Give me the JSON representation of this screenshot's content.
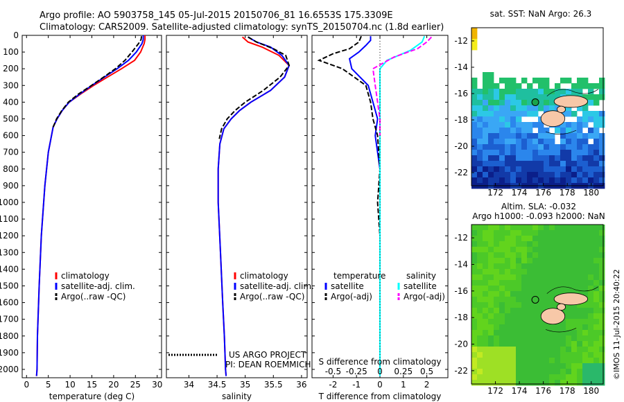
{
  "header": {
    "line1": "Argo profile: AO 5903758_145 05-Jul-2015 20150706_81 16.6553S 175.3309E",
    "line2": "Climatology: CARS2009. Satellite-adjusted climatology: synTS_20150704.nc (1.8d earlier)"
  },
  "colors": {
    "climatology": "#ff0000",
    "satellite": "#0000ff",
    "argo": "#000000",
    "salinity_satellite": "#00ffff",
    "salinity_argo": "#ff00ff"
  },
  "credits": {
    "project": "US ARGO PROJECT",
    "pi": "PI: DEAN ROEMMICH"
  },
  "watermark": "©IMOS 11-Jul-2015 20:40:22",
  "chart_data": [
    {
      "id": "temperature",
      "type": "line",
      "xlabel": "temperature (deg C)",
      "ylabel": "",
      "xlim": [
        -1,
        31
      ],
      "ylim": [
        2050,
        0
      ],
      "xticks": [
        0,
        5,
        10,
        15,
        20,
        25,
        30
      ],
      "yticks": [
        0,
        100,
        200,
        300,
        400,
        500,
        600,
        700,
        800,
        900,
        1000,
        1100,
        1200,
        1300,
        1400,
        1500,
        1600,
        1700,
        1800,
        1900,
        2000
      ],
      "legend": {
        "position": "lower-center",
        "entries": [
          "climatology",
          "satellite-adj. clim.",
          "Argo(..raw -QC)"
        ]
      },
      "series": [
        {
          "name": "climatology",
          "color": "#ff0000",
          "style": "solid",
          "x": [
            27.2,
            27.2,
            27.0,
            26.2,
            24.8,
            21.8,
            18.6,
            15.4,
            12.5,
            9.8,
            8.2,
            7.0,
            6.1,
            5.0,
            4.2,
            3.4,
            2.9,
            2.5,
            2.4,
            2.3
          ],
          "y": [
            0,
            25,
            50,
            100,
            150,
            200,
            250,
            300,
            350,
            400,
            450,
            500,
            550,
            700,
            900,
            1200,
            1500,
            1800,
            2000,
            2040
          ]
        },
        {
          "name": "satellite-adj. clim.",
          "color": "#0000ff",
          "style": "solid",
          "x": [
            26.8,
            26.8,
            26.5,
            25.2,
            23.4,
            20.8,
            17.9,
            15.0,
            12.3,
            9.8,
            8.2,
            7.0,
            6.1,
            5.0,
            4.2,
            3.4,
            2.9,
            2.5,
            2.4,
            2.3
          ],
          "y": [
            0,
            25,
            50,
            100,
            150,
            200,
            250,
            300,
            350,
            400,
            450,
            500,
            550,
            700,
            900,
            1200,
            1500,
            1800,
            2000,
            2040
          ]
        },
        {
          "name": "Argo(..raw -QC)",
          "color": "#000000",
          "style": "dashed",
          "x": [
            26.4,
            26.3,
            25.7,
            24.2,
            22.6,
            20.4,
            17.7,
            14.9,
            12.0,
            9.6,
            8.1,
            6.9,
            6.1
          ],
          "y": [
            5,
            25,
            50,
            100,
            150,
            200,
            250,
            300,
            350,
            400,
            450,
            500,
            550
          ]
        }
      ]
    },
    {
      "id": "salinity",
      "type": "line",
      "xlabel": "salinity",
      "ylabel": "",
      "xlim": [
        33.6,
        36.1
      ],
      "ylim": [
        2050,
        0
      ],
      "xticks": [
        34,
        34.5,
        35,
        35.5,
        36
      ],
      "legend": {
        "position": "lower-center",
        "entries": [
          "climatology",
          "satellite-adj. clim.",
          "Argo(..raw -QC)"
        ]
      },
      "series": [
        {
          "name": "climatology",
          "color": "#ff0000",
          "style": "solid",
          "x": [
            34.95,
            35.05,
            35.3,
            35.6,
            35.78,
            35.7,
            35.45,
            35.1,
            34.9,
            34.75,
            34.62,
            34.55,
            34.52,
            34.52,
            34.56,
            34.6,
            34.63,
            34.65,
            34.66
          ],
          "y": [
            10,
            40,
            70,
            120,
            180,
            250,
            330,
            400,
            450,
            500,
            560,
            650,
            800,
            1000,
            1300,
            1600,
            1800,
            2000,
            2040
          ]
        },
        {
          "name": "satellite-adj. clim.",
          "color": "#0000ff",
          "style": "solid",
          "x": [
            35.05,
            35.2,
            35.45,
            35.65,
            35.78,
            35.7,
            35.45,
            35.1,
            34.9,
            34.75,
            34.62,
            34.55,
            34.52,
            34.52,
            34.56,
            34.6,
            34.63,
            34.65,
            34.66
          ],
          "y": [
            10,
            40,
            70,
            120,
            180,
            250,
            330,
            400,
            450,
            500,
            560,
            650,
            800,
            1000,
            1300,
            1600,
            1800,
            2000,
            2040
          ]
        },
        {
          "name": "Argo(..raw -QC)",
          "color": "#000000",
          "style": "dashed",
          "x": [
            35.05,
            35.2,
            35.5,
            35.72,
            35.78,
            35.62,
            35.32,
            35.0,
            34.82,
            34.68,
            34.58,
            34.54
          ],
          "y": [
            10,
            40,
            80,
            120,
            180,
            250,
            330,
            400,
            450,
            500,
            560,
            620
          ]
        }
      ],
      "annotations": [
        "US ARGO PROJECT",
        "PI: DEAN ROEMMICH"
      ]
    },
    {
      "id": "differences",
      "type": "line",
      "xlabel": "T difference from climatology",
      "x2label": "S difference from climatology",
      "xlim": [
        -2.9,
        2.9
      ],
      "ylim": [
        2050,
        0
      ],
      "xticks": [
        -2,
        -1,
        0,
        1,
        2
      ],
      "x2ticks": [
        -0.5,
        -0.25,
        0,
        0.25,
        0.5
      ],
      "x2tick_labels": [
        "-0.5",
        "-0.25",
        "0",
        "0.25",
        "0.5"
      ],
      "legend": {
        "position": "lower-center",
        "entries": [
          "temperature",
          "satellite",
          "Argo(-adj)",
          "salinity",
          "satellite",
          "Argo(-adj)"
        ]
      },
      "series": [
        {
          "name": "temperature satellite",
          "color": "#0000ff",
          "style": "solid",
          "x": [
            -0.4,
            -0.4,
            -0.6,
            -0.9,
            -1.3,
            -1.2,
            -0.5,
            -0.3,
            -0.1,
            -0.2,
            0.0,
            0.0,
            0.0,
            0.0
          ],
          "y": [
            5,
            30,
            60,
            100,
            140,
            200,
            300,
            400,
            500,
            600,
            800,
            1200,
            1600,
            2040
          ]
        },
        {
          "name": "temperature Argo(-adj)",
          "color": "#000000",
          "style": "dashed",
          "x": [
            -0.8,
            -0.9,
            -1.3,
            -2.0,
            -2.6,
            -1.6,
            -1.1,
            -0.6,
            -0.4,
            -0.3,
            -0.1,
            0.0,
            -0.1,
            0.0
          ],
          "y": [
            5,
            40,
            80,
            110,
            150,
            200,
            250,
            300,
            400,
            500,
            600,
            800,
            1000,
            1200
          ]
        },
        {
          "name": "salinity satellite",
          "color": "#00ffff",
          "style": "solid",
          "x": [
            1.9,
            1.8,
            1.3,
            0.3,
            0.0,
            0.0,
            0.0,
            0.0,
            0.0,
            0.0,
            0.0
          ],
          "y": [
            5,
            40,
            90,
            150,
            200,
            300,
            500,
            800,
            1200,
            1600,
            2040
          ]
        },
        {
          "name": "salinity Argo(-adj)",
          "color": "#ff00ff",
          "style": "dashed",
          "x": [
            2.2,
            2.0,
            1.6,
            0.6,
            -0.3,
            -0.2,
            -0.1,
            0.0,
            0.0
          ],
          "y": [
            10,
            40,
            80,
            130,
            200,
            300,
            400,
            500,
            600
          ]
        }
      ]
    },
    {
      "id": "sst_map",
      "type": "heatmap",
      "title": "sat. SST: NaN Argo: 26.3",
      "xlim": [
        170,
        181
      ],
      "ylim": [
        -23,
        -11
      ],
      "xticks": [
        172,
        174,
        176,
        178,
        180
      ],
      "yticks": [
        -12,
        -14,
        -16,
        -18,
        -20,
        -22
      ],
      "marker": {
        "lon": 175.33,
        "lat": -16.66
      }
    },
    {
      "id": "sla_map",
      "type": "heatmap",
      "title": "Altim. SLA: -0.032",
      "subtitle": "Argo h1000: -0.093 h2000: NaN",
      "xlim": [
        170,
        181
      ],
      "ylim": [
        -23,
        -11
      ],
      "xticks": [
        172,
        174,
        176,
        178,
        180
      ],
      "yticks": [
        -12,
        -14,
        -16,
        -18,
        -20,
        -22
      ],
      "marker": {
        "lon": 175.33,
        "lat": -16.66
      }
    }
  ]
}
